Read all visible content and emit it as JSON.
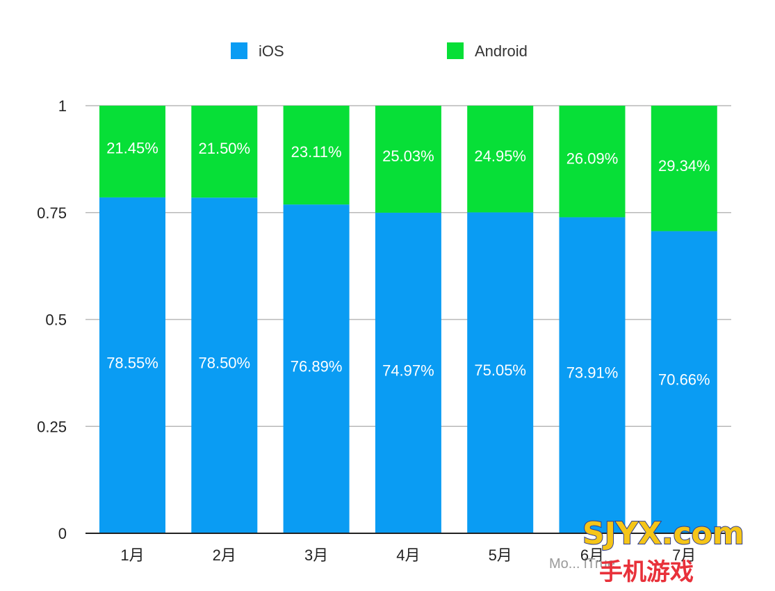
{
  "chart_data": {
    "type": "bar",
    "stacked": true,
    "categories": [
      "1月",
      "2月",
      "3月",
      "4月",
      "5月",
      "6月",
      "7月"
    ],
    "series": [
      {
        "name": "iOS",
        "color": "#0a9cf3",
        "values": [
          0.7855,
          0.785,
          0.7689,
          0.7497,
          0.7505,
          0.7391,
          0.7066
        ],
        "labels": [
          "78.55%",
          "78.50%",
          "76.89%",
          "74.97%",
          "75.05%",
          "73.91%",
          "70.66%"
        ]
      },
      {
        "name": "Android",
        "color": "#07df37",
        "values": [
          0.2145,
          0.215,
          0.2311,
          0.2503,
          0.2495,
          0.2609,
          0.2934
        ],
        "labels": [
          "21.45%",
          "21.50%",
          "23.11%",
          "25.03%",
          "24.95%",
          "26.09%",
          "29.34%"
        ]
      }
    ],
    "yticks": [
      0,
      0.25,
      0.5,
      0.75,
      1
    ],
    "ytick_labels": [
      "0",
      "0.25",
      "0.5",
      "0.75",
      "1"
    ],
    "ylim": [
      0,
      1
    ],
    "grid": true,
    "legend": "top-center",
    "title": "",
    "xlabel": "",
    "ylabel": ""
  },
  "watermark": {
    "logo_top": "SJYX.com",
    "logo_bottom": "手机游戏",
    "caption": "Mo... iTrue"
  }
}
